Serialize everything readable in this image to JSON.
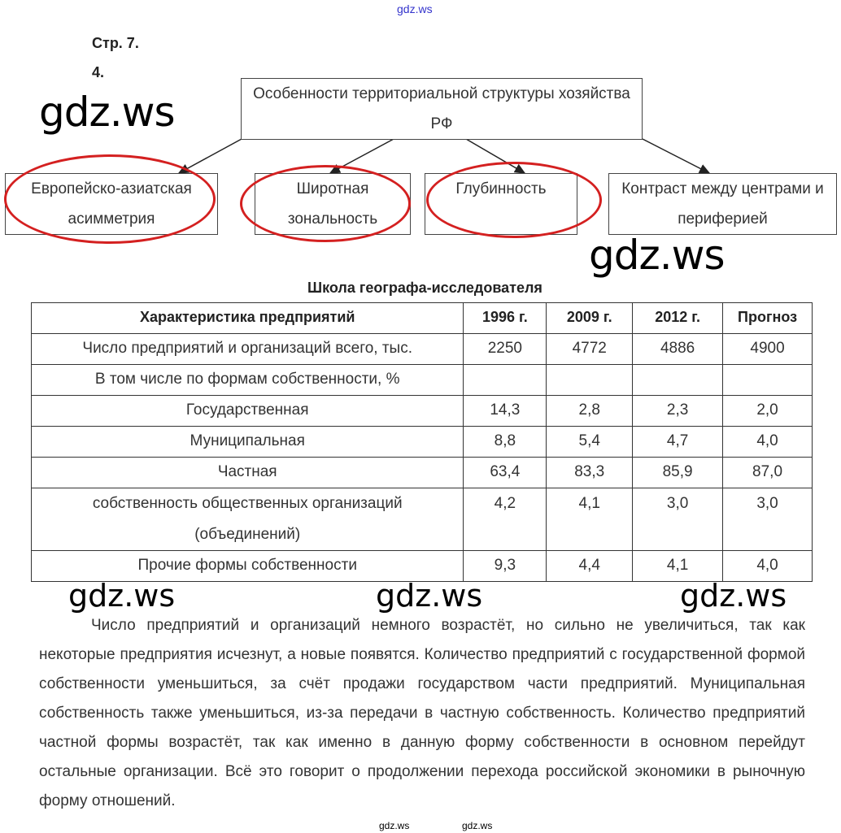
{
  "watermark": "gdz.ws",
  "page_ref": "Стр. 7.",
  "task_number": "4.",
  "diagram": {
    "root": "Особенности территориальной структуры хозяйства РФ",
    "children": [
      {
        "label": "Европейско-азиатская асимметрия",
        "circled": true
      },
      {
        "label": "Широтная зональность",
        "circled": true
      },
      {
        "label": "Глубинность",
        "circled": true
      },
      {
        "label": "Контраст между центрами и периферией",
        "circled": false
      }
    ],
    "circle_color": "#d42020"
  },
  "table": {
    "title": "Школа географа-исследователя",
    "headers": [
      "Характеристика предприятий",
      "1996 г.",
      "2009 г.",
      "2012 г.",
      "Прогноз"
    ],
    "rows": [
      [
        "Число предприятий и организаций всего, тыс.",
        "2250",
        "4772",
        "4886",
        "4900"
      ],
      [
        "В том числе по формам собственности, %",
        "",
        "",
        "",
        ""
      ],
      [
        "Государственная",
        "14,3",
        "2,8",
        "2,3",
        "2,0"
      ],
      [
        "Муниципальная",
        "8,8",
        "5,4",
        "4,7",
        "4,0"
      ],
      [
        "Частная",
        "63,4",
        "83,3",
        "85,9",
        "87,0"
      ],
      [
        "собственность общественных организаций (объединений)",
        "4,2",
        "4,1",
        "3,0",
        "3,0"
      ],
      [
        "Прочие формы собственности",
        "9,3",
        "4,4",
        "4,1",
        "4,0"
      ]
    ]
  },
  "paragraph": "Число предприятий и организаций немного возрастёт, но сильно не увеличиться, так как некоторые предприятия исчезнут, а новые появятся. Количество предприятий с государственной формой собственности уменьшиться, за счёт продажи государством части предприятий. Муниципальная собственность также уменьшиться, из-за передачи в частную собственность. Количество предприятий частной формы возрастёт, так как именно в данную форму собственности в основном перейдут остальные организации. Всё это говорит о продолжении перехода российской экономики в рыночную форму отношений."
}
